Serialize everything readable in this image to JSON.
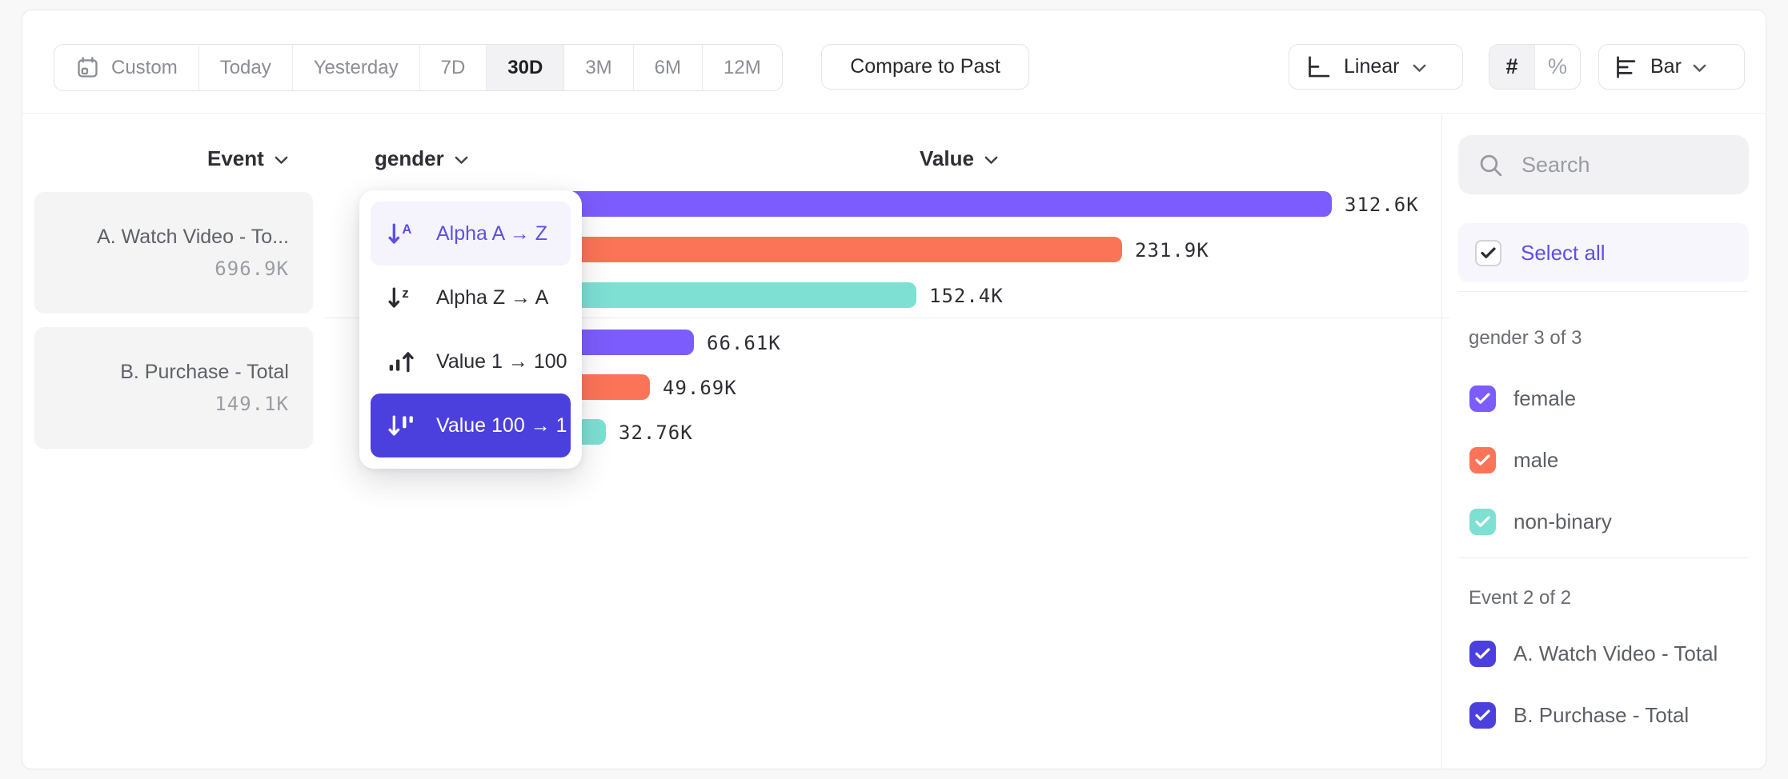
{
  "toolbar": {
    "date_ranges": [
      {
        "label": "Custom",
        "icon": "calendar-icon",
        "selected": false
      },
      {
        "label": "Today",
        "selected": false
      },
      {
        "label": "Yesterday",
        "selected": false
      },
      {
        "label": "7D",
        "selected": false
      },
      {
        "label": "30D",
        "selected": true
      },
      {
        "label": "3M",
        "selected": false
      },
      {
        "label": "6M",
        "selected": false
      },
      {
        "label": "12M",
        "selected": false
      }
    ],
    "compare_button": "Compare to Past",
    "scale_selector": {
      "label": "Linear"
    },
    "number_format": {
      "options": [
        "#",
        "%"
      ],
      "selected": "#"
    },
    "chart_type_selector": {
      "label": "Bar"
    }
  },
  "columns": {
    "event": "Event",
    "breakdown": "gender",
    "value": "Value"
  },
  "event_summary": [
    {
      "name": "A. Watch Video - To...",
      "value": "696.9K"
    },
    {
      "name": "B. Purchase - Total",
      "value": "149.1K"
    }
  ],
  "sort_menu": {
    "items": [
      {
        "label": "Alpha A → Z",
        "icon": "sort-alpha-asc-icon",
        "state": "highlighted"
      },
      {
        "label": "Alpha Z → A",
        "icon": "sort-alpha-desc-icon",
        "state": "default"
      },
      {
        "label": "Value 1 → 100",
        "icon": "sort-value-asc-icon",
        "state": "default"
      },
      {
        "label": "Value 100 → 1",
        "icon": "sort-value-desc-icon",
        "state": "selected"
      }
    ]
  },
  "chart_data": {
    "type": "bar",
    "orientation": "horizontal",
    "sort": "Value 100 → 1",
    "xlim": [
      0,
      312600
    ],
    "legend_position": "right-panel",
    "groups": [
      {
        "event": "A. Watch Video - Total",
        "bars": [
          {
            "category": "female",
            "value": 312600,
            "label": "312.6K",
            "color": "#7c5cfc"
          },
          {
            "category": "male",
            "value": 231900,
            "label": "231.9K",
            "color": "#fc7458"
          },
          {
            "category": "non-binary",
            "value": 152400,
            "label": "152.4K",
            "color": "#7de0d3"
          }
        ]
      },
      {
        "event": "B. Purchase - Total",
        "bars": [
          {
            "category": "female",
            "value": 66610,
            "label": "66.61K",
            "color": "#7c5cfc"
          },
          {
            "category": "male",
            "value": 49690,
            "label": "49.69K",
            "color": "#fc7458"
          },
          {
            "category": "non-binary",
            "value": 32760,
            "label": "32.76K",
            "color": "#7de0d3"
          }
        ]
      }
    ]
  },
  "sidebar": {
    "search_placeholder": "Search",
    "select_all_label": "Select all",
    "sections": [
      {
        "title": "gender 3 of 3",
        "items": [
          {
            "label": "female",
            "checked": true,
            "color": "#7c5cfc"
          },
          {
            "label": "male",
            "checked": true,
            "color": "#fc7458"
          },
          {
            "label": "non-binary",
            "checked": true,
            "color": "#7de0d3"
          }
        ]
      },
      {
        "title": "Event 2 of 2",
        "items": [
          {
            "label": "A. Watch Video - Total",
            "checked": true,
            "color": "#4b40dd"
          },
          {
            "label": "B. Purchase - Total",
            "checked": true,
            "color": "#4b40dd"
          }
        ]
      }
    ]
  },
  "colors": {
    "accent": "#4b40dd",
    "purple": "#7c5cfc",
    "orange": "#fc7458",
    "teal": "#7de0d3"
  }
}
